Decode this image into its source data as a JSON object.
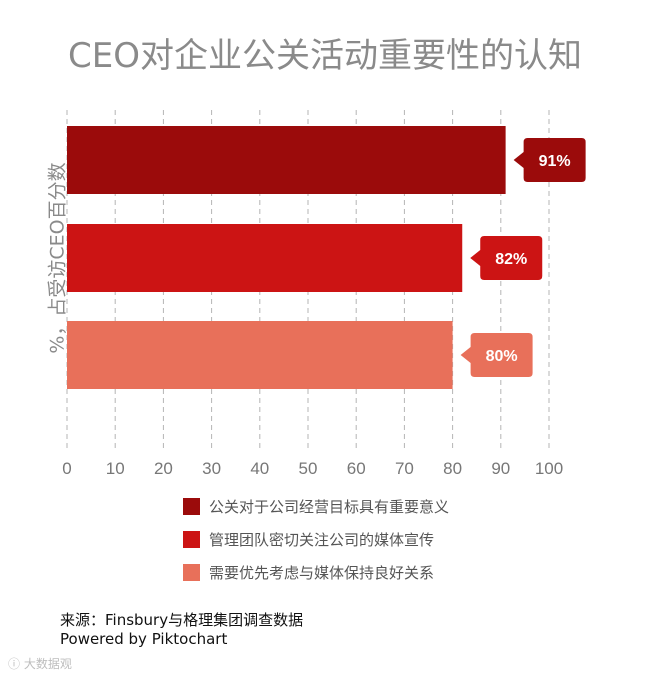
{
  "chart_data": {
    "type": "bar",
    "orientation": "horizontal",
    "title": "CEO对企业公关活动重要性的认知",
    "ylabel": "%，占受访CEO百分数",
    "xlim": [
      0,
      100
    ],
    "x_ticks": [
      0,
      10,
      20,
      30,
      40,
      50,
      60,
      70,
      80,
      90,
      100
    ],
    "grid": "vertical-dashed",
    "legend_position": "bottom",
    "series": [
      {
        "name": "公关对于公司经营目标具有重要意义",
        "value": 91,
        "label": "91%",
        "color": "#9b0b0b"
      },
      {
        "name": "管理团队密切关注公司的媒体宣传",
        "value": 82,
        "label": "82%",
        "color": "#cc1414"
      },
      {
        "name": "需要优先考虑与媒体保持良好关系",
        "value": 80,
        "label": "80%",
        "color": "#e8705a"
      }
    ]
  },
  "source": {
    "line1": "来源：Finsbury与格理集团调查数据",
    "line2": "Powered by Piktochart"
  },
  "watermark": "大数据观"
}
